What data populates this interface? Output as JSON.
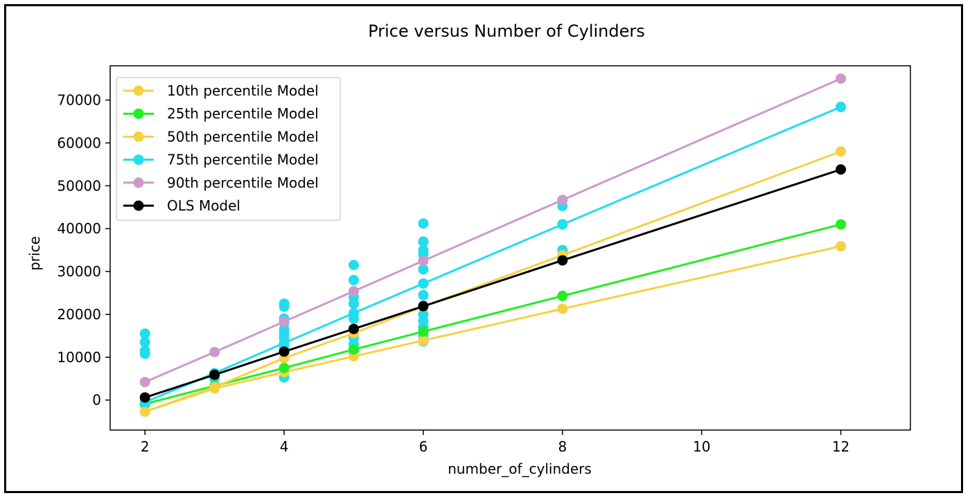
{
  "chart_data": {
    "type": "line",
    "title": "Price versus Number of Cylinders",
    "xlabel": "number_of_cylinders",
    "ylabel": "price",
    "xlim": [
      1.5,
      13.0
    ],
    "ylim": [
      -7000,
      78000
    ],
    "xticks": [
      2,
      4,
      6,
      8,
      10,
      12
    ],
    "yticks": [
      0,
      10000,
      20000,
      30000,
      40000,
      50000,
      60000,
      70000
    ],
    "grid": false,
    "legend_position": "top-left",
    "x": [
      2,
      3,
      4,
      5,
      6,
      8,
      12
    ],
    "series": [
      {
        "name": "10th percentile Model",
        "color": "#f5d142",
        "values": [
          -2700,
          2700,
          6500,
          10200,
          13900,
          21300,
          35900
        ]
      },
      {
        "name": "25th percentile Model",
        "color": "#22ee22",
        "values": [
          -900,
          3300,
          7500,
          11800,
          16000,
          24300,
          41000
        ]
      },
      {
        "name": "50th percentile Model",
        "color": "#f5d142",
        "values": [
          -2700,
          3000,
          9800,
          15600,
          21800,
          33800,
          58000
        ]
      },
      {
        "name": "75th percentile Model",
        "color": "#22ddee",
        "values": [
          -500,
          6300,
          13300,
          20300,
          27200,
          41000,
          68400
        ]
      },
      {
        "name": "90th percentile Model",
        "color": "#cc99cc",
        "values": [
          4200,
          11200,
          18300,
          25400,
          32500,
          46700,
          75000
        ]
      },
      {
        "name": "OLS Model",
        "color": "#000000",
        "values": [
          600,
          5900,
          11300,
          16600,
          21900,
          32600,
          53800
        ]
      }
    ],
    "scatter_points": {
      "color": "#22ddee",
      "x": [
        2,
        2,
        2,
        2,
        2,
        3,
        3,
        4,
        4,
        4,
        4,
        4,
        4,
        4,
        4,
        4,
        4,
        4,
        5,
        5,
        5,
        5,
        5,
        5,
        5,
        5,
        6,
        6,
        6,
        6,
        6,
        6,
        6,
        6,
        6,
        6,
        6,
        6,
        8,
        8,
        8,
        8,
        8,
        12
      ],
      "y": [
        15500,
        13500,
        11500,
        10800,
        -1000,
        6000,
        5000,
        22500,
        21800,
        19000,
        18000,
        16500,
        15500,
        14500,
        13000,
        12000,
        6500,
        5300,
        31500,
        28000,
        24000,
        22500,
        19000,
        14500,
        13000,
        11500,
        41200,
        37000,
        35000,
        34000,
        30500,
        24500,
        22000,
        20000,
        18500,
        17000,
        15000,
        13700,
        46700,
        45300,
        41000,
        35000,
        33500,
        68400
      ]
    }
  }
}
